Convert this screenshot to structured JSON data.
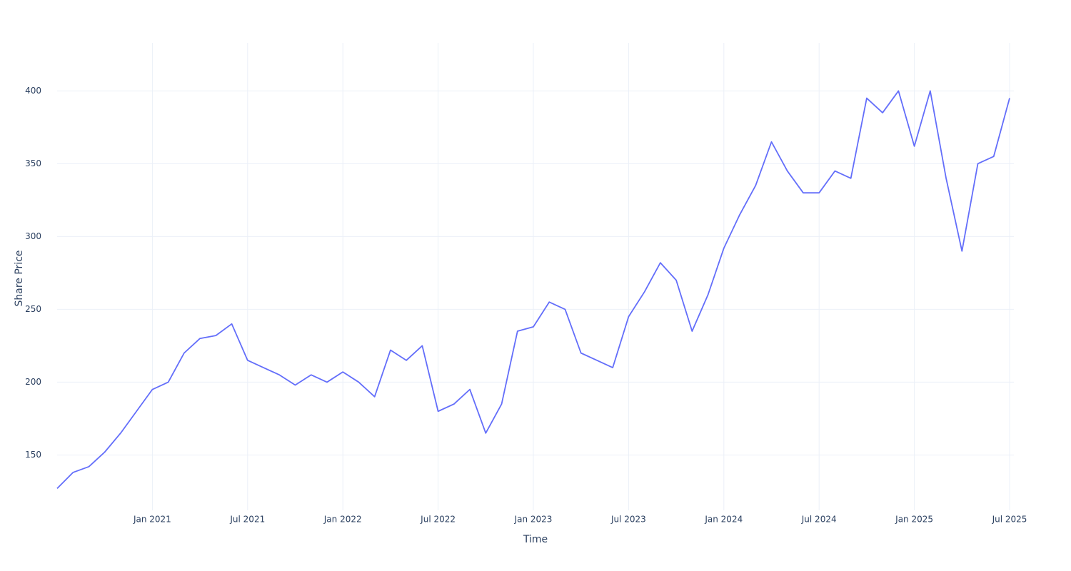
{
  "chart_data": {
    "type": "line",
    "x_label": "Time",
    "y_label": "Share Price",
    "x": [
      "2020-07",
      "2020-08",
      "2020-09",
      "2020-10",
      "2020-11",
      "2020-12",
      "2021-01",
      "2021-02",
      "2021-03",
      "2021-04",
      "2021-05",
      "2021-06",
      "2021-07",
      "2021-08",
      "2021-09",
      "2021-10",
      "2021-11",
      "2021-12",
      "2022-01",
      "2022-02",
      "2022-03",
      "2022-04",
      "2022-05",
      "2022-06",
      "2022-07",
      "2022-08",
      "2022-09",
      "2022-10",
      "2022-11",
      "2022-12",
      "2023-01",
      "2023-02",
      "2023-03",
      "2023-04",
      "2023-05",
      "2023-06",
      "2023-07",
      "2023-08",
      "2023-09",
      "2023-10",
      "2023-11",
      "2023-12",
      "2024-01",
      "2024-02",
      "2024-03",
      "2024-04",
      "2024-05",
      "2024-06",
      "2024-07",
      "2024-08",
      "2024-09",
      "2024-10",
      "2024-11",
      "2024-12",
      "2025-01",
      "2025-02",
      "2025-03",
      "2025-04",
      "2025-05",
      "2025-06",
      "2025-07"
    ],
    "series": [
      {
        "name": "Share Price",
        "color": "#636efa",
        "values": [
          127,
          138,
          142,
          152,
          165,
          180,
          195,
          200,
          220,
          230,
          232,
          240,
          215,
          210,
          205,
          198,
          205,
          200,
          207,
          200,
          190,
          222,
          215,
          225,
          180,
          185,
          195,
          165,
          185,
          235,
          238,
          255,
          250,
          220,
          215,
          210,
          245,
          262,
          282,
          270,
          235,
          260,
          292,
          315,
          335,
          365,
          345,
          330,
          330,
          345,
          340,
          395,
          385,
          400,
          362,
          400,
          340,
          290,
          350,
          355,
          395
        ]
      }
    ],
    "xlim": [
      "2020-07",
      "2025-07"
    ],
    "xticks": [
      {
        "value": "2021-01",
        "label": "Jan 2021"
      },
      {
        "value": "2021-07",
        "label": "Jul 2021"
      },
      {
        "value": "2022-01",
        "label": "Jan 2022"
      },
      {
        "value": "2022-07",
        "label": "Jul 2022"
      },
      {
        "value": "2023-01",
        "label": "Jan 2023"
      },
      {
        "value": "2023-07",
        "label": "Jul 2023"
      },
      {
        "value": "2024-01",
        "label": "Jan 2024"
      },
      {
        "value": "2024-07",
        "label": "Jul 2024"
      },
      {
        "value": "2025-01",
        "label": "Jan 2025"
      },
      {
        "value": "2025-07",
        "label": "Jul 2025"
      }
    ],
    "ylim": [
      112,
      433
    ],
    "yticks": [
      150,
      200,
      250,
      300,
      350,
      400
    ],
    "grid": true
  }
}
